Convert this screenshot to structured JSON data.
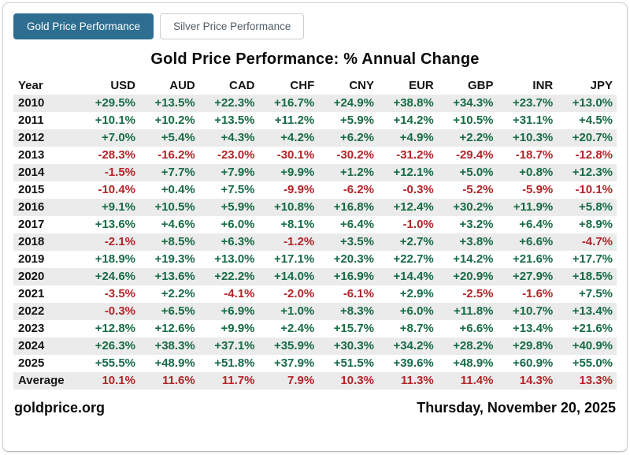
{
  "tabs": [
    {
      "label": "Gold Price Performance",
      "active": true
    },
    {
      "label": "Silver Price Performance",
      "active": false
    }
  ],
  "title": "Gold Price Performance: % Annual Change",
  "chart_data": {
    "type": "table",
    "title": "Gold Price Performance: % Annual Change",
    "columns": [
      "Year",
      "USD",
      "AUD",
      "CAD",
      "CHF",
      "CNY",
      "EUR",
      "GBP",
      "INR",
      "JPY"
    ],
    "rows": [
      {
        "year": "2010",
        "values": [
          "+29.5%",
          "+13.5%",
          "+22.3%",
          "+16.7%",
          "+24.9%",
          "+38.8%",
          "+34.3%",
          "+23.7%",
          "+13.0%"
        ]
      },
      {
        "year": "2011",
        "values": [
          "+10.1%",
          "+10.2%",
          "+13.5%",
          "+11.2%",
          "+5.9%",
          "+14.2%",
          "+10.5%",
          "+31.1%",
          "+4.5%"
        ]
      },
      {
        "year": "2012",
        "values": [
          "+7.0%",
          "+5.4%",
          "+4.3%",
          "+4.2%",
          "+6.2%",
          "+4.9%",
          "+2.2%",
          "+10.3%",
          "+20.7%"
        ]
      },
      {
        "year": "2013",
        "values": [
          "-28.3%",
          "-16.2%",
          "-23.0%",
          "-30.1%",
          "-30.2%",
          "-31.2%",
          "-29.4%",
          "-18.7%",
          "-12.8%"
        ]
      },
      {
        "year": "2014",
        "values": [
          "-1.5%",
          "+7.7%",
          "+7.9%",
          "+9.9%",
          "+1.2%",
          "+12.1%",
          "+5.0%",
          "+0.8%",
          "+12.3%"
        ]
      },
      {
        "year": "2015",
        "values": [
          "-10.4%",
          "+0.4%",
          "+7.5%",
          "-9.9%",
          "-6.2%",
          "-0.3%",
          "-5.2%",
          "-5.9%",
          "-10.1%"
        ]
      },
      {
        "year": "2016",
        "values": [
          "+9.1%",
          "+10.5%",
          "+5.9%",
          "+10.8%",
          "+16.8%",
          "+12.4%",
          "+30.2%",
          "+11.9%",
          "+5.8%"
        ]
      },
      {
        "year": "2017",
        "values": [
          "+13.6%",
          "+4.6%",
          "+6.0%",
          "+8.1%",
          "+6.4%",
          "-1.0%",
          "+3.2%",
          "+6.4%",
          "+8.9%"
        ]
      },
      {
        "year": "2018",
        "values": [
          "-2.1%",
          "+8.5%",
          "+6.3%",
          "-1.2%",
          "+3.5%",
          "+2.7%",
          "+3.8%",
          "+6.6%",
          "-4.7%"
        ]
      },
      {
        "year": "2019",
        "values": [
          "+18.9%",
          "+19.3%",
          "+13.0%",
          "+17.1%",
          "+20.3%",
          "+22.7%",
          "+14.2%",
          "+21.6%",
          "+17.7%"
        ]
      },
      {
        "year": "2020",
        "values": [
          "+24.6%",
          "+13.6%",
          "+22.2%",
          "+14.0%",
          "+16.9%",
          "+14.4%",
          "+20.9%",
          "+27.9%",
          "+18.5%"
        ]
      },
      {
        "year": "2021",
        "values": [
          "-3.5%",
          "+2.2%",
          "-4.1%",
          "-2.0%",
          "-6.1%",
          "+2.9%",
          "-2.5%",
          "-1.6%",
          "+7.5%"
        ]
      },
      {
        "year": "2022",
        "values": [
          "-0.3%",
          "+6.5%",
          "+6.9%",
          "+1.0%",
          "+8.3%",
          "+6.0%",
          "+11.8%",
          "+10.7%",
          "+13.4%"
        ]
      },
      {
        "year": "2023",
        "values": [
          "+12.8%",
          "+12.6%",
          "+9.9%",
          "+2.4%",
          "+15.7%",
          "+8.7%",
          "+6.6%",
          "+13.4%",
          "+21.6%"
        ]
      },
      {
        "year": "2024",
        "values": [
          "+26.3%",
          "+38.3%",
          "+37.1%",
          "+35.9%",
          "+30.3%",
          "+34.2%",
          "+28.2%",
          "+29.8%",
          "+40.9%"
        ]
      },
      {
        "year": "2025",
        "values": [
          "+55.5%",
          "+48.9%",
          "+51.8%",
          "+37.9%",
          "+51.5%",
          "+39.6%",
          "+48.9%",
          "+60.9%",
          "+55.0%"
        ]
      },
      {
        "year": "Average",
        "is_average": true,
        "values": [
          "10.1%",
          "11.6%",
          "11.7%",
          "7.9%",
          "10.3%",
          "11.3%",
          "11.4%",
          "14.3%",
          "13.3%"
        ]
      }
    ]
  },
  "footer": {
    "site": "goldprice.org",
    "date": "Thursday, November 20, 2025"
  },
  "colors": {
    "accent": "#2e6e91",
    "positive": "#176b45",
    "negative": "#b22428",
    "row_alt": "#ebebeb"
  }
}
